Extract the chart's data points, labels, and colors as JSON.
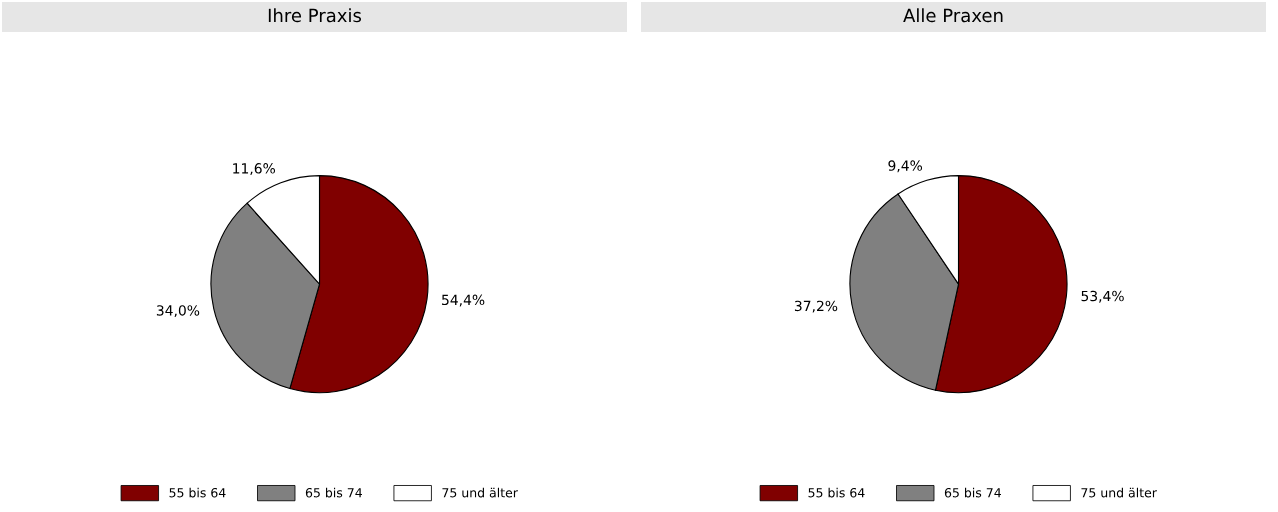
{
  "chart_data": [
    {
      "type": "pie",
      "title": "Ihre Praxis",
      "categories": [
        "55 bis 64",
        "65 bis 74",
        "75 und älter"
      ],
      "values": [
        54.4,
        34.0,
        11.6
      ],
      "value_labels": [
        "54,4%",
        "34,0%",
        "11,6%"
      ],
      "colors": [
        "#800000",
        "#808080",
        "#ffffff"
      ],
      "legend": "bottom"
    },
    {
      "type": "pie",
      "title": "Alle Praxen",
      "categories": [
        "55 bis 64",
        "65 bis 74",
        "75 und älter"
      ],
      "values": [
        53.4,
        37.2,
        9.4
      ],
      "value_labels": [
        "53,4%",
        "37,2%",
        "9,4%"
      ],
      "colors": [
        "#800000",
        "#808080",
        "#ffffff"
      ],
      "legend": "bottom"
    }
  ]
}
